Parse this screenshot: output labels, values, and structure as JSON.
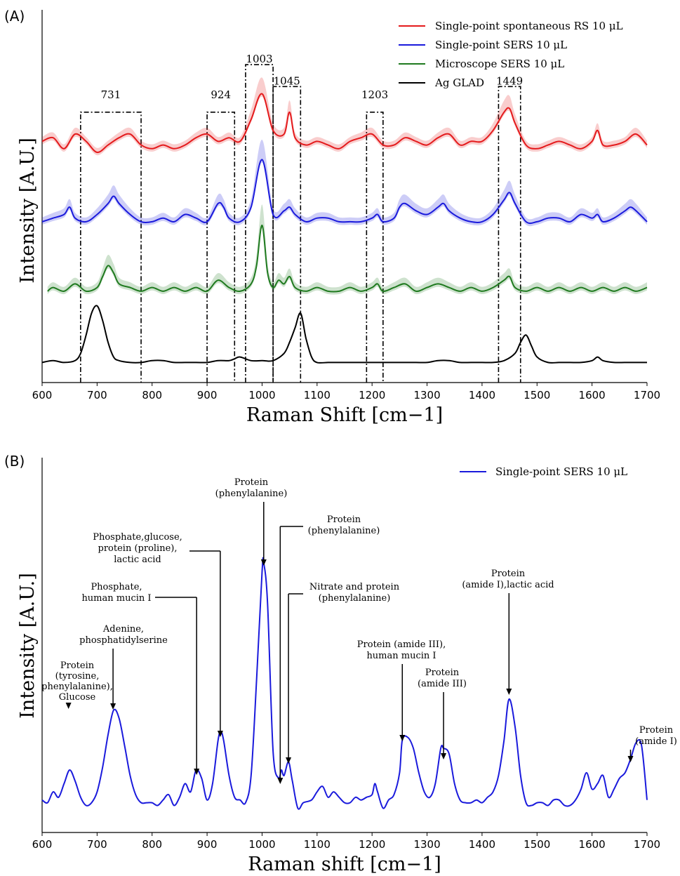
{
  "chart_data": [
    {
      "panel": "(A)",
      "type": "line",
      "xlabel": "Raman Shift [cm−1]",
      "ylabel": "Intensity [A.U.]",
      "xlim": [
        600,
        1700
      ],
      "xticks": [
        600,
        700,
        800,
        900,
        1000,
        1100,
        1200,
        1300,
        1400,
        1500,
        1600,
        1700
      ],
      "legend": "top-right",
      "series": [
        {
          "name": "Single-point spontaneous RS 10 μL",
          "color": "#e41a1c",
          "band": true,
          "x": [
            600,
            620,
            640,
            660,
            680,
            700,
            720,
            740,
            760,
            780,
            800,
            820,
            840,
            860,
            880,
            900,
            920,
            940,
            960,
            980,
            1000,
            1020,
            1040,
            1050,
            1060,
            1080,
            1100,
            1120,
            1140,
            1160,
            1180,
            1200,
            1220,
            1240,
            1260,
            1280,
            1300,
            1320,
            1340,
            1360,
            1380,
            1400,
            1420,
            1440,
            1450,
            1460,
            1480,
            1500,
            1520,
            1540,
            1560,
            1580,
            1600,
            1610,
            1620,
            1640,
            1660,
            1680,
            1700
          ],
          "y": [
            6.6,
            6.7,
            6.4,
            6.8,
            6.6,
            6.3,
            6.5,
            6.7,
            6.8,
            6.5,
            6.4,
            6.5,
            6.4,
            6.5,
            6.7,
            6.8,
            6.6,
            6.7,
            6.6,
            7.2,
            7.9,
            6.9,
            6.8,
            7.4,
            6.7,
            6.5,
            6.6,
            6.5,
            6.4,
            6.6,
            6.7,
            6.8,
            6.5,
            6.5,
            6.7,
            6.6,
            6.5,
            6.7,
            6.8,
            6.5,
            6.6,
            6.6,
            6.9,
            7.4,
            7.5,
            7.1,
            6.5,
            6.4,
            6.5,
            6.6,
            6.5,
            6.4,
            6.6,
            6.9,
            6.5,
            6.5,
            6.6,
            6.8,
            6.5
          ]
        },
        {
          "name": "Single-point SERS 10 μL",
          "color": "#1a1adc",
          "band": true,
          "x": [
            600,
            620,
            640,
            650,
            660,
            680,
            700,
            720,
            730,
            740,
            760,
            780,
            800,
            820,
            840,
            860,
            880,
            900,
            920,
            930,
            940,
            960,
            980,
            1000,
            1020,
            1040,
            1050,
            1060,
            1080,
            1100,
            1120,
            1140,
            1160,
            1180,
            1200,
            1210,
            1220,
            1240,
            1250,
            1260,
            1280,
            1300,
            1320,
            1330,
            1340,
            1360,
            1380,
            1400,
            1420,
            1440,
            1450,
            1460,
            1480,
            1500,
            1520,
            1540,
            1560,
            1580,
            1600,
            1610,
            1620,
            1640,
            1660,
            1670,
            1680,
            1700
          ],
          "y": [
            4.4,
            4.5,
            4.6,
            4.8,
            4.5,
            4.4,
            4.6,
            4.9,
            5.1,
            4.9,
            4.6,
            4.4,
            4.4,
            4.5,
            4.4,
            4.6,
            4.5,
            4.4,
            4.9,
            4.8,
            4.5,
            4.4,
            4.8,
            6.1,
            4.6,
            4.7,
            4.8,
            4.6,
            4.4,
            4.5,
            4.5,
            4.4,
            4.4,
            4.4,
            4.5,
            4.6,
            4.4,
            4.5,
            4.8,
            4.9,
            4.7,
            4.6,
            4.8,
            4.9,
            4.7,
            4.5,
            4.4,
            4.4,
            4.6,
            5.0,
            5.2,
            4.9,
            4.4,
            4.4,
            4.5,
            4.5,
            4.4,
            4.6,
            4.5,
            4.6,
            4.4,
            4.5,
            4.7,
            4.8,
            4.7,
            4.4
          ]
        },
        {
          "name": "Microscope SERS 10 μL",
          "color": "#1f7a1f",
          "band": true,
          "x": [
            610,
            620,
            640,
            660,
            680,
            700,
            710,
            720,
            730,
            740,
            760,
            780,
            800,
            820,
            840,
            860,
            880,
            900,
            920,
            940,
            960,
            980,
            990,
            1000,
            1010,
            1020,
            1030,
            1040,
            1050,
            1060,
            1080,
            1100,
            1120,
            1140,
            1160,
            1180,
            1200,
            1210,
            1220,
            1240,
            1260,
            1280,
            1300,
            1320,
            1340,
            1360,
            1380,
            1400,
            1420,
            1440,
            1450,
            1460,
            1480,
            1500,
            1520,
            1540,
            1560,
            1580,
            1600,
            1620,
            1640,
            1660,
            1680,
            1700
          ],
          "y": [
            2.5,
            2.6,
            2.5,
            2.7,
            2.5,
            2.6,
            2.9,
            3.2,
            3.0,
            2.7,
            2.6,
            2.5,
            2.6,
            2.5,
            2.6,
            2.5,
            2.6,
            2.5,
            2.8,
            2.6,
            2.5,
            2.7,
            3.2,
            4.3,
            3.0,
            2.6,
            2.8,
            2.7,
            2.9,
            2.6,
            2.5,
            2.6,
            2.5,
            2.5,
            2.6,
            2.5,
            2.6,
            2.7,
            2.5,
            2.6,
            2.7,
            2.5,
            2.6,
            2.7,
            2.6,
            2.5,
            2.6,
            2.5,
            2.6,
            2.8,
            2.9,
            2.6,
            2.5,
            2.6,
            2.5,
            2.6,
            2.5,
            2.6,
            2.5,
            2.6,
            2.5,
            2.6,
            2.5,
            2.6
          ]
        },
        {
          "name": "Ag GLAD",
          "color": "#000000",
          "band": false,
          "x": [
            600,
            620,
            640,
            660,
            670,
            680,
            690,
            700,
            710,
            720,
            730,
            740,
            760,
            780,
            800,
            820,
            840,
            860,
            880,
            900,
            920,
            940,
            950,
            960,
            980,
            1000,
            1020,
            1040,
            1050,
            1060,
            1070,
            1080,
            1090,
            1100,
            1120,
            1140,
            1160,
            1180,
            1200,
            1220,
            1240,
            1260,
            1280,
            1300,
            1320,
            1340,
            1360,
            1380,
            1400,
            1420,
            1440,
            1460,
            1470,
            1480,
            1490,
            1500,
            1520,
            1540,
            1560,
            1580,
            1600,
            1610,
            1620,
            1640,
            1660,
            1680,
            1700
          ],
          "y": [
            0.55,
            0.6,
            0.55,
            0.6,
            0.8,
            1.3,
            1.9,
            2.1,
            1.7,
            1.1,
            0.7,
            0.6,
            0.55,
            0.55,
            0.6,
            0.6,
            0.55,
            0.55,
            0.55,
            0.55,
            0.6,
            0.6,
            0.65,
            0.7,
            0.6,
            0.6,
            0.6,
            0.8,
            1.1,
            1.5,
            1.9,
            1.2,
            0.7,
            0.55,
            0.55,
            0.55,
            0.55,
            0.55,
            0.55,
            0.55,
            0.55,
            0.55,
            0.55,
            0.55,
            0.6,
            0.6,
            0.55,
            0.55,
            0.55,
            0.55,
            0.6,
            0.8,
            1.1,
            1.3,
            1.0,
            0.7,
            0.55,
            0.55,
            0.55,
            0.55,
            0.6,
            0.7,
            0.6,
            0.55,
            0.55,
            0.55,
            0.55
          ]
        }
      ],
      "ylim": [
        0,
        10.2
      ],
      "peak_boxes": [
        {
          "label": "731",
          "x0": 670,
          "x1": 780,
          "top": 7.4
        },
        {
          "label": "924",
          "x0": 900,
          "x1": 950,
          "top": 7.4
        },
        {
          "label": "1003",
          "x0": 970,
          "x1": 1020,
          "top": 8.7
        },
        {
          "label": "1045",
          "x0": 1020,
          "x1": 1070,
          "top": 8.1
        },
        {
          "label": "1203",
          "x0": 1190,
          "x1": 1220,
          "top": 7.4
        },
        {
          "label": "1449",
          "x0": 1430,
          "x1": 1470,
          "top": 8.1
        }
      ]
    },
    {
      "panel": "(B)",
      "type": "line",
      "xlabel": "Raman shift [cm−1]",
      "ylabel": "Intensity [A.U.]",
      "xlim": [
        600,
        1700
      ],
      "xticks": [
        600,
        700,
        800,
        900,
        1000,
        1100,
        1200,
        1300,
        1400,
        1500,
        1600,
        1700
      ],
      "legend": "top-right",
      "ylim": [
        0,
        10
      ],
      "series": [
        {
          "name": "Single-point SERS 10 μL",
          "color": "#1a1adc",
          "x": [
            600,
            610,
            620,
            630,
            640,
            650,
            660,
            670,
            680,
            690,
            700,
            710,
            720,
            730,
            740,
            750,
            760,
            770,
            780,
            790,
            800,
            810,
            820,
            830,
            840,
            850,
            860,
            870,
            880,
            890,
            900,
            910,
            920,
            925,
            930,
            940,
            950,
            960,
            970,
            980,
            990,
            1000,
            1003,
            1010,
            1020,
            1030,
            1035,
            1040,
            1048,
            1055,
            1065,
            1075,
            1090,
            1100,
            1110,
            1120,
            1130,
            1140,
            1150,
            1160,
            1170,
            1180,
            1190,
            1200,
            1205,
            1210,
            1220,
            1230,
            1240,
            1250,
            1255,
            1265,
            1275,
            1285,
            1295,
            1305,
            1315,
            1325,
            1330,
            1340,
            1350,
            1360,
            1370,
            1380,
            1390,
            1400,
            1410,
            1420,
            1430,
            1440,
            1449,
            1460,
            1470,
            1480,
            1490,
            1500,
            1510,
            1520,
            1530,
            1540,
            1550,
            1560,
            1570,
            1580,
            1590,
            1600,
            1610,
            1620,
            1630,
            1640,
            1650,
            1660,
            1670,
            1680,
            1690,
            1700
          ],
          "y": [
            0.6,
            0.5,
            0.9,
            0.7,
            1.2,
            1.7,
            1.3,
            0.7,
            0.4,
            0.5,
            0.9,
            1.8,
            3.0,
            3.9,
            3.6,
            2.6,
            1.5,
            0.8,
            0.5,
            0.5,
            0.5,
            0.4,
            0.6,
            0.8,
            0.4,
            0.7,
            1.2,
            0.9,
            1.7,
            1.4,
            0.6,
            1.2,
            2.8,
            3.1,
            2.8,
            1.5,
            0.7,
            0.6,
            0.5,
            1.5,
            5.0,
            9.0,
            9.3,
            7.8,
            2.4,
            1.4,
            1.7,
            1.5,
            2.0,
            1.3,
            0.3,
            0.5,
            0.6,
            0.9,
            1.1,
            0.7,
            0.9,
            0.7,
            0.5,
            0.5,
            0.7,
            0.6,
            0.7,
            0.8,
            1.2,
            0.9,
            0.3,
            0.6,
            0.8,
            1.6,
            2.8,
            2.9,
            2.5,
            1.6,
            0.9,
            0.7,
            1.2,
            2.5,
            2.5,
            2.3,
            1.2,
            0.6,
            0.5,
            0.5,
            0.6,
            0.5,
            0.7,
            0.9,
            1.5,
            2.8,
            4.3,
            3.3,
            1.5,
            0.5,
            0.4,
            0.5,
            0.5,
            0.4,
            0.6,
            0.6,
            0.4,
            0.4,
            0.6,
            1.0,
            1.6,
            1.0,
            1.2,
            1.5,
            0.7,
            1.0,
            1.4,
            1.6,
            2.1,
            2.7,
            2.6,
            0.6
          ],
          "annotations": [
            {
              "lines": [
                "Protein",
                "(tyrosine,",
                "phenylalanine),",
                "Glucose"
              ],
              "x": 648
            },
            {
              "lines": [
                "Adenine,",
                "phosphatidylserine"
              ],
              "x": 729
            },
            {
              "lines": [
                "Phosphate,",
                "human mucin I"
              ],
              "x": 881
            },
            {
              "lines": [
                "Phosphate,glucose,",
                "protein (proline),",
                "lactic acid"
              ],
              "x": 924
            },
            {
              "lines": [
                "Protein",
                "(phenylalanine)"
              ],
              "x": 1003
            },
            {
              "lines": [
                "Protein",
                "(phenylalanine)"
              ],
              "x": 1033
            },
            {
              "lines": [
                "Nitrate and protein",
                "(phenylalanine)"
              ],
              "x": 1048
            },
            {
              "lines": [
                "Protein (amide III),",
                "human mucin I"
              ],
              "x": 1255
            },
            {
              "lines": [
                "Protein",
                "(amide III)"
              ],
              "x": 1330
            },
            {
              "lines": [
                "Protein",
                "(amide I),lactic acid"
              ],
              "x": 1449
            },
            {
              "lines": [
                "Protein",
                "(amide I)"
              ],
              "x": 1670
            }
          ]
        }
      ]
    }
  ]
}
